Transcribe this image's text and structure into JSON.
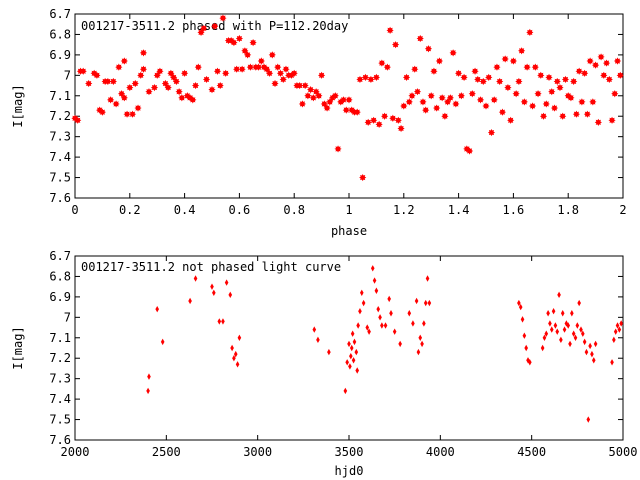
{
  "chart_data": [
    {
      "type": "scatter",
      "title": "001217-3511.2 phased with P=112.20day",
      "xlabel": "phase",
      "ylabel": "I[mag]",
      "xlim": [
        0,
        2
      ],
      "ylim": [
        6.7,
        7.6
      ],
      "y_inverted": true,
      "grid": false,
      "marker": "star",
      "color": "#ff0000",
      "x_ticks": [
        "0",
        "0.2",
        "0.4",
        "0.6",
        "0.8",
        "1",
        "1.2",
        "1.4",
        "1.6",
        "1.8",
        "2"
      ],
      "y_ticks": [
        "6.7",
        "6.8",
        "6.9",
        "7",
        "7.1",
        "7.2",
        "7.3",
        "7.4",
        "7.5",
        "7.6"
      ],
      "points": [
        [
          0.0,
          7.21
        ],
        [
          0.01,
          7.22
        ],
        [
          0.02,
          6.98
        ],
        [
          0.03,
          6.98
        ],
        [
          0.05,
          7.04
        ],
        [
          0.07,
          6.99
        ],
        [
          0.08,
          7.0
        ],
        [
          0.09,
          7.17
        ],
        [
          0.1,
          7.18
        ],
        [
          0.11,
          7.03
        ],
        [
          0.12,
          7.03
        ],
        [
          0.13,
          7.12
        ],
        [
          0.14,
          7.03
        ],
        [
          0.15,
          7.14
        ],
        [
          0.16,
          6.96
        ],
        [
          0.17,
          7.09
        ],
        [
          0.18,
          7.11
        ],
        [
          0.18,
          6.93
        ],
        [
          0.19,
          7.19
        ],
        [
          0.2,
          7.06
        ],
        [
          0.21,
          7.19
        ],
        [
          0.22,
          7.04
        ],
        [
          0.23,
          7.16
        ],
        [
          0.24,
          7.0
        ],
        [
          0.25,
          6.97
        ],
        [
          0.25,
          6.89
        ],
        [
          0.27,
          7.08
        ],
        [
          0.29,
          7.06
        ],
        [
          0.3,
          7.0
        ],
        [
          0.31,
          6.98
        ],
        [
          0.33,
          7.04
        ],
        [
          0.34,
          7.06
        ],
        [
          0.35,
          6.99
        ],
        [
          0.36,
          7.01
        ],
        [
          0.37,
          7.03
        ],
        [
          0.38,
          7.08
        ],
        [
          0.39,
          7.11
        ],
        [
          0.4,
          6.99
        ],
        [
          0.41,
          7.1
        ],
        [
          0.42,
          7.11
        ],
        [
          0.43,
          7.12
        ],
        [
          0.44,
          7.05
        ],
        [
          0.45,
          6.96
        ],
        [
          0.46,
          6.79
        ],
        [
          0.47,
          6.77
        ],
        [
          0.48,
          7.02
        ],
        [
          0.5,
          7.07
        ],
        [
          0.51,
          6.76
        ],
        [
          0.52,
          6.98
        ],
        [
          0.53,
          7.05
        ],
        [
          0.54,
          6.72
        ],
        [
          0.55,
          6.99
        ],
        [
          0.56,
          6.83
        ],
        [
          0.57,
          6.83
        ],
        [
          0.58,
          6.84
        ],
        [
          0.59,
          6.97
        ],
        [
          0.6,
          6.82
        ],
        [
          0.61,
          6.97
        ],
        [
          0.62,
          6.88
        ],
        [
          0.63,
          6.9
        ],
        [
          0.64,
          6.96
        ],
        [
          0.65,
          6.84
        ],
        [
          0.66,
          6.96
        ],
        [
          0.67,
          6.96
        ],
        [
          0.68,
          6.93
        ],
        [
          0.69,
          6.96
        ],
        [
          0.7,
          6.97
        ],
        [
          0.71,
          6.99
        ],
        [
          0.72,
          6.9
        ],
        [
          0.73,
          7.04
        ],
        [
          0.74,
          6.96
        ],
        [
          0.75,
          6.99
        ],
        [
          0.76,
          7.02
        ],
        [
          0.77,
          6.97
        ],
        [
          0.78,
          7.0
        ],
        [
          0.79,
          7.0
        ],
        [
          0.8,
          6.99
        ],
        [
          0.81,
          7.05
        ],
        [
          0.82,
          7.05
        ],
        [
          0.83,
          7.14
        ],
        [
          0.84,
          7.05
        ],
        [
          0.85,
          7.1
        ],
        [
          0.86,
          7.07
        ],
        [
          0.87,
          7.11
        ],
        [
          0.88,
          7.08
        ],
        [
          0.89,
          7.1
        ],
        [
          0.9,
          7.0
        ],
        [
          0.91,
          7.14
        ],
        [
          0.92,
          7.16
        ],
        [
          0.93,
          7.13
        ],
        [
          0.94,
          7.11
        ],
        [
          0.95,
          7.1
        ],
        [
          0.96,
          7.36
        ],
        [
          0.97,
          7.13
        ],
        [
          0.98,
          7.12
        ],
        [
          0.99,
          7.17
        ],
        [
          1.0,
          7.12
        ],
        [
          1.01,
          7.17
        ],
        [
          1.02,
          7.18
        ],
        [
          1.03,
          7.18
        ],
        [
          1.04,
          7.02
        ],
        [
          1.05,
          7.5
        ],
        [
          1.06,
          7.01
        ],
        [
          1.07,
          7.23
        ],
        [
          1.08,
          7.02
        ],
        [
          1.09,
          7.22
        ],
        [
          1.1,
          7.01
        ],
        [
          1.11,
          7.24
        ],
        [
          1.12,
          6.94
        ],
        [
          1.13,
          7.2
        ],
        [
          1.14,
          6.96
        ],
        [
          1.15,
          6.78
        ],
        [
          1.16,
          7.21
        ],
        [
          1.17,
          6.85
        ],
        [
          1.18,
          7.22
        ],
        [
          1.19,
          7.26
        ],
        [
          1.2,
          7.15
        ],
        [
          1.21,
          7.01
        ],
        [
          1.22,
          7.13
        ],
        [
          1.23,
          7.1
        ],
        [
          1.24,
          6.97
        ],
        [
          1.25,
          7.08
        ],
        [
          1.26,
          6.82
        ],
        [
          1.27,
          7.13
        ],
        [
          1.28,
          7.17
        ],
        [
          1.29,
          6.87
        ],
        [
          1.3,
          7.1
        ],
        [
          1.31,
          6.98
        ],
        [
          1.32,
          7.16
        ],
        [
          1.33,
          6.93
        ],
        [
          1.34,
          7.11
        ],
        [
          1.35,
          7.2
        ],
        [
          1.36,
          7.13
        ],
        [
          1.37,
          7.11
        ],
        [
          1.38,
          6.89
        ],
        [
          1.39,
          7.14
        ],
        [
          1.4,
          6.99
        ],
        [
          1.41,
          7.1
        ],
        [
          1.42,
          7.01
        ],
        [
          1.43,
          7.36
        ],
        [
          1.44,
          7.37
        ],
        [
          1.45,
          7.09
        ],
        [
          1.46,
          6.98
        ],
        [
          1.47,
          7.02
        ],
        [
          1.48,
          7.12
        ],
        [
          1.49,
          7.03
        ],
        [
          1.5,
          7.15
        ],
        [
          1.51,
          7.01
        ],
        [
          1.52,
          7.28
        ],
        [
          1.53,
          7.12
        ],
        [
          1.54,
          6.96
        ],
        [
          1.55,
          7.03
        ],
        [
          1.56,
          7.18
        ],
        [
          1.57,
          6.92
        ],
        [
          1.58,
          7.06
        ],
        [
          1.59,
          7.22
        ],
        [
          1.6,
          6.93
        ],
        [
          1.61,
          7.09
        ],
        [
          1.62,
          7.03
        ],
        [
          1.63,
          6.88
        ],
        [
          1.64,
          7.13
        ],
        [
          1.65,
          6.96
        ],
        [
          1.66,
          6.79
        ],
        [
          1.67,
          7.15
        ],
        [
          1.68,
          6.96
        ],
        [
          1.69,
          7.09
        ],
        [
          1.7,
          7.0
        ],
        [
          1.71,
          7.2
        ],
        [
          1.72,
          7.14
        ],
        [
          1.73,
          7.01
        ],
        [
          1.74,
          7.08
        ],
        [
          1.75,
          7.16
        ],
        [
          1.76,
          7.03
        ],
        [
          1.77,
          7.06
        ],
        [
          1.78,
          7.2
        ],
        [
          1.79,
          7.02
        ],
        [
          1.8,
          7.1
        ],
        [
          1.81,
          7.11
        ],
        [
          1.82,
          7.03
        ],
        [
          1.83,
          7.19
        ],
        [
          1.84,
          6.98
        ],
        [
          1.85,
          7.13
        ],
        [
          1.86,
          6.99
        ],
        [
          1.87,
          7.19
        ],
        [
          1.88,
          6.93
        ],
        [
          1.89,
          7.13
        ],
        [
          1.9,
          6.95
        ],
        [
          1.91,
          7.23
        ],
        [
          1.92,
          6.91
        ],
        [
          1.93,
          7.0
        ],
        [
          1.94,
          6.94
        ],
        [
          1.95,
          7.02
        ],
        [
          1.96,
          7.22
        ],
        [
          1.97,
          7.09
        ],
        [
          1.98,
          6.93
        ],
        [
          1.99,
          7.0
        ]
      ]
    },
    {
      "type": "scatter",
      "title": "001217-3511.2 not phased light curve",
      "xlabel": "hjd0",
      "ylabel": "I[mag]",
      "xlim": [
        2000,
        5000
      ],
      "ylim": [
        6.7,
        7.6
      ],
      "y_inverted": true,
      "grid": false,
      "marker": "diamond",
      "color": "#ff0000",
      "x_ticks": [
        "2000",
        "2500",
        "3000",
        "3500",
        "4000",
        "4500",
        "5000"
      ],
      "y_ticks": [
        "6.7",
        "6.8",
        "6.9",
        "7",
        "7.1",
        "7.2",
        "7.3",
        "7.4",
        "7.5",
        "7.6"
      ],
      "points": [
        [
          2400,
          7.36
        ],
        [
          2405,
          7.29
        ],
        [
          2450,
          6.96
        ],
        [
          2480,
          7.12
        ],
        [
          2630,
          6.92
        ],
        [
          2660,
          6.81
        ],
        [
          2750,
          6.85
        ],
        [
          2760,
          6.88
        ],
        [
          2790,
          7.02
        ],
        [
          2810,
          7.02
        ],
        [
          2830,
          6.83
        ],
        [
          2850,
          6.89
        ],
        [
          2860,
          7.15
        ],
        [
          2870,
          7.2
        ],
        [
          2880,
          7.18
        ],
        [
          2890,
          7.23
        ],
        [
          2900,
          7.1
        ],
        [
          3310,
          7.06
        ],
        [
          3330,
          7.11
        ],
        [
          3390,
          7.17
        ],
        [
          3480,
          7.36
        ],
        [
          3490,
          7.22
        ],
        [
          3500,
          7.13
        ],
        [
          3505,
          7.24
        ],
        [
          3510,
          7.19
        ],
        [
          3515,
          7.15
        ],
        [
          3520,
          7.08
        ],
        [
          3525,
          7.21
        ],
        [
          3530,
          7.12
        ],
        [
          3540,
          7.17
        ],
        [
          3545,
          7.26
        ],
        [
          3550,
          7.04
        ],
        [
          3560,
          6.97
        ],
        [
          3570,
          6.88
        ],
        [
          3580,
          6.93
        ],
        [
          3600,
          7.05
        ],
        [
          3610,
          7.07
        ],
        [
          3630,
          6.76
        ],
        [
          3640,
          6.82
        ],
        [
          3650,
          6.87
        ],
        [
          3660,
          6.96
        ],
        [
          3670,
          7.0
        ],
        [
          3680,
          7.04
        ],
        [
          3700,
          7.04
        ],
        [
          3720,
          6.91
        ],
        [
          3730,
          6.98
        ],
        [
          3750,
          7.07
        ],
        [
          3780,
          7.13
        ],
        [
          3830,
          6.98
        ],
        [
          3850,
          7.03
        ],
        [
          3870,
          6.92
        ],
        [
          3880,
          7.17
        ],
        [
          3890,
          7.1
        ],
        [
          3900,
          7.13
        ],
        [
          3910,
          7.03
        ],
        [
          3920,
          6.93
        ],
        [
          3930,
          6.81
        ],
        [
          3940,
          6.93
        ],
        [
          4430,
          6.93
        ],
        [
          4440,
          6.95
        ],
        [
          4450,
          7.01
        ],
        [
          4460,
          7.09
        ],
        [
          4470,
          7.15
        ],
        [
          4480,
          7.21
        ],
        [
          4490,
          7.22
        ],
        [
          4560,
          7.15
        ],
        [
          4570,
          7.1
        ],
        [
          4580,
          7.08
        ],
        [
          4590,
          6.98
        ],
        [
          4600,
          7.03
        ],
        [
          4610,
          7.06
        ],
        [
          4620,
          6.97
        ],
        [
          4630,
          7.04
        ],
        [
          4640,
          7.07
        ],
        [
          4650,
          6.89
        ],
        [
          4660,
          7.11
        ],
        [
          4670,
          6.98
        ],
        [
          4680,
          7.06
        ],
        [
          4690,
          7.03
        ],
        [
          4700,
          7.04
        ],
        [
          4710,
          7.13
        ],
        [
          4720,
          6.98
        ],
        [
          4730,
          7.08
        ],
        [
          4740,
          7.1
        ],
        [
          4750,
          7.04
        ],
        [
          4760,
          6.93
        ],
        [
          4770,
          7.06
        ],
        [
          4780,
          7.08
        ],
        [
          4790,
          7.12
        ],
        [
          4800,
          7.17
        ],
        [
          4810,
          7.5
        ],
        [
          4820,
          7.14
        ],
        [
          4830,
          7.18
        ],
        [
          4840,
          7.21
        ],
        [
          4850,
          7.13
        ],
        [
          4940,
          7.22
        ],
        [
          4950,
          7.11
        ],
        [
          4960,
          7.07
        ],
        [
          4970,
          7.04
        ],
        [
          4980,
          7.06
        ],
        [
          4990,
          7.03
        ]
      ]
    }
  ]
}
